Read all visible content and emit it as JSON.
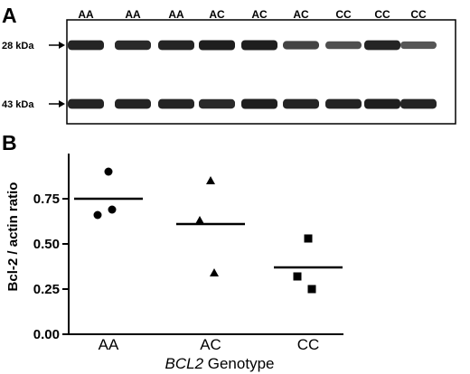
{
  "panel_a": {
    "label": "A",
    "lane_labels": [
      "AA",
      "AA",
      "AA",
      "AC",
      "AC",
      "AC",
      "CC",
      "CC",
      "CC"
    ],
    "marker_top": "28 kDa",
    "marker_bottom": "43 kDa",
    "band_color": "#1e1e1e",
    "band_intensity_top": [
      0.95,
      0.9,
      0.95,
      1.0,
      1.0,
      0.7,
      0.6,
      0.95,
      0.55
    ],
    "band_intensity_bottom": [
      0.95,
      0.95,
      0.95,
      0.9,
      1.0,
      0.95,
      0.95,
      1.0,
      0.95
    ]
  },
  "panel_b": {
    "label": "B",
    "chart_data": {
      "type": "scatter",
      "categories": [
        "AA",
        "AC",
        "CC"
      ],
      "ylabel": "Bcl-2 / actin ratio",
      "xlabel_italic": "BCL2",
      "xlabel_rest": " Genotype",
      "ylim": [
        0,
        1.0
      ],
      "yticks": [
        0.0,
        0.25,
        0.5,
        0.75
      ],
      "ytick_labels": [
        "0.00",
        "0.25",
        "0.50",
        "0.75"
      ],
      "groups": [
        {
          "category": "AA",
          "marker": "circle",
          "values": [
            0.9,
            0.66,
            0.69
          ],
          "mean": 0.75
        },
        {
          "category": "AC",
          "marker": "triangle",
          "values": [
            0.85,
            0.63,
            0.34
          ],
          "mean": 0.61
        },
        {
          "category": "CC",
          "marker": "square",
          "values": [
            0.53,
            0.32,
            0.25
          ],
          "mean": 0.37
        }
      ]
    }
  }
}
